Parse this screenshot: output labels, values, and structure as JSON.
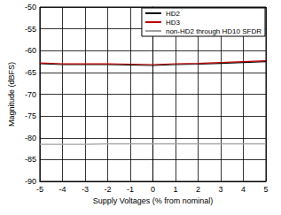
{
  "chart_data": {
    "type": "line",
    "x_label": "Supply Voltages (% from nominal)",
    "y_label": "Magnitude (dBFS)",
    "x": [
      -5,
      -4,
      -3,
      -2,
      -1,
      0,
      1,
      2,
      3,
      4,
      5
    ],
    "series": [
      {
        "name": "HD2",
        "color": "#000000",
        "values": [
          -63.0,
          -63.2,
          -63.2,
          -63.2,
          -63.3,
          -63.4,
          -63.2,
          -63.1,
          -62.9,
          -62.7,
          -62.5
        ]
      },
      {
        "name": "HD3",
        "color": "#c00000",
        "values": [
          -62.8,
          -63.0,
          -63.0,
          -63.0,
          -63.1,
          -63.2,
          -63.0,
          -62.9,
          -62.7,
          -62.5,
          -62.3
        ]
      },
      {
        "name": "non-HD2 through HD10 SFDR",
        "color": "#a0a0a0",
        "values": [
          -81.5,
          -81.5,
          -81.5,
          -81.4,
          -81.4,
          -81.4,
          -81.4,
          -81.4,
          -81.4,
          -81.4,
          -81.4
        ]
      }
    ],
    "xlim": [
      -5,
      5
    ],
    "xticks": [
      -5,
      -4,
      -3,
      -2,
      -1,
      0,
      1,
      2,
      3,
      4,
      5
    ],
    "ylim": [
      -90,
      -50
    ],
    "yticks": [
      -90,
      -85,
      -80,
      -75,
      -70,
      -65,
      -60,
      -55,
      -50
    ],
    "grid": true,
    "legend": "upper right"
  }
}
